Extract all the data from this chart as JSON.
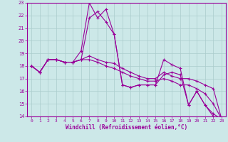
{
  "xlabel": "Windchill (Refroidissement éolien,°C)",
  "bg_color": "#cce8e8",
  "grid_color": "#aacccc",
  "line_color": "#990099",
  "xlim": [
    -0.5,
    23.5
  ],
  "ylim": [
    14,
    23
  ],
  "xticks": [
    0,
    1,
    2,
    3,
    4,
    5,
    6,
    7,
    8,
    9,
    10,
    11,
    12,
    13,
    14,
    15,
    16,
    17,
    18,
    19,
    20,
    21,
    22,
    23
  ],
  "yticks": [
    14,
    15,
    16,
    17,
    18,
    19,
    20,
    21,
    22,
    23
  ],
  "series": [
    [
      18.0,
      17.5,
      18.5,
      18.5,
      18.3,
      18.3,
      19.2,
      23.0,
      21.8,
      22.5,
      20.5,
      16.5,
      16.3,
      16.5,
      16.5,
      16.5,
      18.5,
      18.1,
      17.8,
      14.9,
      16.0,
      14.9,
      14.2,
      13.8
    ],
    [
      18.0,
      17.5,
      18.5,
      18.5,
      18.3,
      18.3,
      18.5,
      21.8,
      22.3,
      21.5,
      20.5,
      16.5,
      16.3,
      16.5,
      16.5,
      16.5,
      17.3,
      17.5,
      17.3,
      14.9,
      16.0,
      14.9,
      14.0,
      13.8
    ],
    [
      18.0,
      17.5,
      18.5,
      18.5,
      18.3,
      18.3,
      18.5,
      18.8,
      18.5,
      18.3,
      18.2,
      17.8,
      17.5,
      17.2,
      17.0,
      17.0,
      17.5,
      17.2,
      17.0,
      17.0,
      16.8,
      16.5,
      16.2,
      13.8
    ],
    [
      18.0,
      17.5,
      18.5,
      18.5,
      18.3,
      18.3,
      18.5,
      18.5,
      18.3,
      18.0,
      17.8,
      17.5,
      17.2,
      17.0,
      16.8,
      16.8,
      17.0,
      16.8,
      16.5,
      16.5,
      16.2,
      15.8,
      15.0,
      13.8
    ]
  ]
}
